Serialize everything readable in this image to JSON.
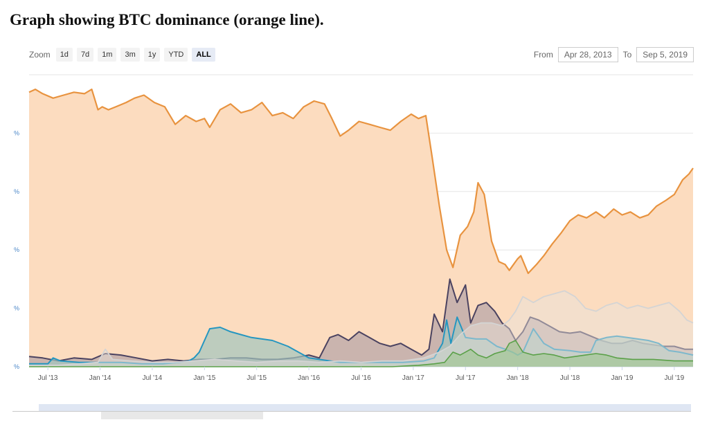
{
  "caption": "Graph showing BTC dominance (orange line).",
  "toolbar": {
    "zoom_label": "Zoom",
    "buttons": [
      "1d",
      "7d",
      "1m",
      "3m",
      "1y",
      "YTD",
      "ALL"
    ],
    "active": "ALL",
    "from_label": "From",
    "from_value": "Apr 28, 2013",
    "to_label": "To",
    "to_value": "Sep 5, 2019"
  },
  "colors": {
    "btc": "#e8933f",
    "btc_fill": "#fcdcbf",
    "dark": "#4a4260",
    "dark_fill": "#b9a7a8",
    "teal": "#2596c0",
    "teal_fill": "#a3c4be",
    "light": "#d4d4d4",
    "green": "#5aa048",
    "grid": "#e6e6e6",
    "axis_label": "#4a86c8"
  },
  "chart_data": {
    "type": "area",
    "title": "",
    "x_ticks": [
      "Jul '13",
      "Jan '14",
      "Jul '14",
      "Jan '15",
      "Jul '15",
      "Jan '16",
      "Jul '16",
      "Jan '17",
      "Jul '17",
      "Jan '18",
      "Jul '18",
      "Jan '19",
      "Jul '19"
    ],
    "y_tick_labels": [
      "%",
      "%",
      "%",
      "%",
      "%"
    ],
    "x_range": [
      2013.32,
      2019.68
    ],
    "ylim": [
      0,
      100
    ],
    "grid": true,
    "series": [
      {
        "key": "btc",
        "x": [
          2013.32,
          2013.38,
          2013.45,
          2013.55,
          2013.65,
          2013.75,
          2013.85,
          2013.92,
          2013.98,
          2014.02,
          2014.08,
          2014.15,
          2014.25,
          2014.33,
          2014.42,
          2014.52,
          2014.62,
          2014.72,
          2014.82,
          2014.92,
          2015.0,
          2015.05,
          2015.15,
          2015.25,
          2015.35,
          2015.45,
          2015.55,
          2015.65,
          2015.75,
          2015.85,
          2015.95,
          2016.05,
          2016.15,
          2016.22,
          2016.3,
          2016.38,
          2016.48,
          2016.58,
          2016.68,
          2016.78,
          2016.88,
          2016.98,
          2017.05,
          2017.12,
          2017.18,
          2017.25,
          2017.32,
          2017.38,
          2017.45,
          2017.52,
          2017.58,
          2017.62,
          2017.68,
          2017.75,
          2017.82,
          2017.88,
          2017.92,
          2017.96,
          2018.0,
          2018.03,
          2018.1,
          2018.18,
          2018.25,
          2018.33,
          2018.42,
          2018.5,
          2018.58,
          2018.66,
          2018.75,
          2018.83,
          2018.92,
          2019.0,
          2019.08,
          2019.17,
          2019.25,
          2019.33,
          2019.42,
          2019.5,
          2019.58,
          2019.64,
          2019.68
        ],
        "y": [
          94,
          95,
          93.5,
          92,
          93,
          94,
          93.5,
          95,
          88,
          89,
          88,
          89,
          90.5,
          92,
          93,
          90.5,
          89,
          83,
          86,
          84,
          85,
          82,
          88,
          90,
          87,
          88,
          90.5,
          86,
          87,
          85,
          89,
          91,
          90,
          85,
          79,
          81,
          84,
          83,
          82,
          81,
          84,
          86.5,
          85,
          86,
          72,
          55,
          40,
          34,
          45,
          48,
          53,
          63,
          59,
          43,
          36,
          35,
          33,
          35,
          37,
          38,
          32,
          35,
          38,
          42,
          46,
          50,
          52,
          51,
          53,
          51,
          54,
          52,
          53,
          51,
          52,
          55,
          57,
          59,
          64,
          66,
          68
        ]
      },
      {
        "key": "dark",
        "x": [
          2013.32,
          2013.45,
          2013.6,
          2013.75,
          2013.92,
          2014.05,
          2014.2,
          2014.35,
          2014.5,
          2014.65,
          2014.8,
          2014.95,
          2015.1,
          2015.25,
          2015.4,
          2015.55,
          2015.7,
          2015.85,
          2016.0,
          2016.1,
          2016.2,
          2016.28,
          2016.38,
          2016.48,
          2016.58,
          2016.68,
          2016.78,
          2016.88,
          2016.98,
          2017.08,
          2017.15,
          2017.2,
          2017.28,
          2017.35,
          2017.42,
          2017.5,
          2017.55,
          2017.62,
          2017.7,
          2017.78,
          2017.85,
          2017.92,
          2017.98,
          2018.05,
          2018.12,
          2018.2,
          2018.3,
          2018.4,
          2018.5,
          2018.6,
          2018.7,
          2018.8,
          2018.9,
          2019.0,
          2019.1,
          2019.2,
          2019.3,
          2019.4,
          2019.5,
          2019.6,
          2019.68
        ],
        "y": [
          3.5,
          3,
          2,
          3,
          2.5,
          4.5,
          4,
          3,
          2,
          2.5,
          2,
          2.5,
          2.5,
          3,
          3,
          2.5,
          2.5,
          3,
          4,
          3,
          10,
          11,
          9,
          12,
          10,
          8,
          7,
          8,
          6,
          4,
          6,
          18,
          12,
          30,
          22,
          28,
          15,
          21,
          22,
          19,
          15,
          13,
          9,
          12,
          17,
          16,
          14,
          12,
          11.5,
          12,
          10.5,
          9,
          8,
          8,
          9,
          8,
          7.5,
          7,
          7,
          6,
          6
        ]
      },
      {
        "key": "teal",
        "x": [
          2013.32,
          2013.5,
          2013.55,
          2013.62,
          2013.8,
          2014.0,
          2014.2,
          2014.4,
          2014.6,
          2014.75,
          2014.85,
          2014.9,
          2014.95,
          2015.05,
          2015.15,
          2015.25,
          2015.35,
          2015.45,
          2015.55,
          2015.65,
          2015.8,
          2016.0,
          2016.3,
          2016.6,
          2016.9,
          2017.1,
          2017.2,
          2017.28,
          2017.32,
          2017.36,
          2017.42,
          2017.5,
          2017.6,
          2017.7,
          2017.8,
          2017.88,
          2017.95,
          2018.0,
          2018.05,
          2018.15,
          2018.25,
          2018.35,
          2018.5,
          2018.6,
          2018.7,
          2018.75,
          2018.85,
          2018.95,
          2019.05,
          2019.15,
          2019.25,
          2019.35,
          2019.45,
          2019.55,
          2019.68
        ],
        "y": [
          1,
          1,
          3,
          2,
          1.5,
          1.5,
          1.5,
          1,
          1,
          1.5,
          2,
          3,
          5,
          13,
          13.5,
          12,
          11,
          10,
          9.5,
          9,
          7,
          3,
          1.5,
          1.5,
          1.5,
          2,
          3,
          8,
          16,
          8,
          17,
          10,
          9.5,
          9.5,
          7,
          6,
          5,
          4,
          5,
          13,
          8,
          6,
          5.5,
          5,
          5,
          9,
          10,
          10.5,
          10,
          9.5,
          9,
          8,
          5.5,
          5,
          4
        ]
      },
      {
        "key": "light",
        "x": [
          2013.32,
          2013.6,
          2013.8,
          2013.98,
          2014.05,
          2014.12,
          2014.3,
          2014.5,
          2014.7,
          2014.9,
          2015.1,
          2015.3,
          2015.5,
          2015.7,
          2015.9,
          2016.1,
          2016.3,
          2016.5,
          2016.7,
          2016.9,
          2017.1,
          2017.25,
          2017.35,
          2017.45,
          2017.55,
          2017.65,
          2017.75,
          2017.85,
          2017.92,
          2017.98,
          2018.05,
          2018.15,
          2018.25,
          2018.35,
          2018.45,
          2018.55,
          2018.65,
          2018.75,
          2018.85,
          2018.95,
          2019.05,
          2019.15,
          2019.25,
          2019.35,
          2019.45,
          2019.55,
          2019.62,
          2019.68
        ],
        "y": [
          0.5,
          0.5,
          1,
          1.5,
          6,
          2.5,
          2,
          1.5,
          1.5,
          2,
          2.5,
          2,
          1.5,
          2,
          2,
          1.5,
          2,
          1.5,
          2,
          2,
          3,
          5,
          7,
          11,
          14,
          15,
          15,
          14,
          16,
          19,
          24,
          22,
          24,
          25,
          26,
          24,
          20,
          19,
          21,
          22,
          20,
          21,
          20,
          21,
          22,
          19,
          16,
          15
        ]
      },
      {
        "key": "green",
        "x": [
          2013.32,
          2016.8,
          2016.95,
          2017.05,
          2017.2,
          2017.3,
          2017.38,
          2017.45,
          2017.55,
          2017.62,
          2017.7,
          2017.78,
          2017.88,
          2017.92,
          2017.98,
          2018.05,
          2018.15,
          2018.25,
          2018.35,
          2018.45,
          2018.55,
          2018.65,
          2018.75,
          2018.85,
          2018.95,
          2019.1,
          2019.3,
          2019.5,
          2019.68
        ],
        "y": [
          0,
          0,
          0.3,
          0.5,
          1,
          1.5,
          5,
          4,
          6,
          4,
          3,
          4.5,
          5.5,
          8,
          9,
          5,
          4,
          4.5,
          4,
          3,
          3.5,
          4,
          4.5,
          4,
          3,
          2.5,
          2.5,
          2,
          2
        ]
      }
    ]
  }
}
